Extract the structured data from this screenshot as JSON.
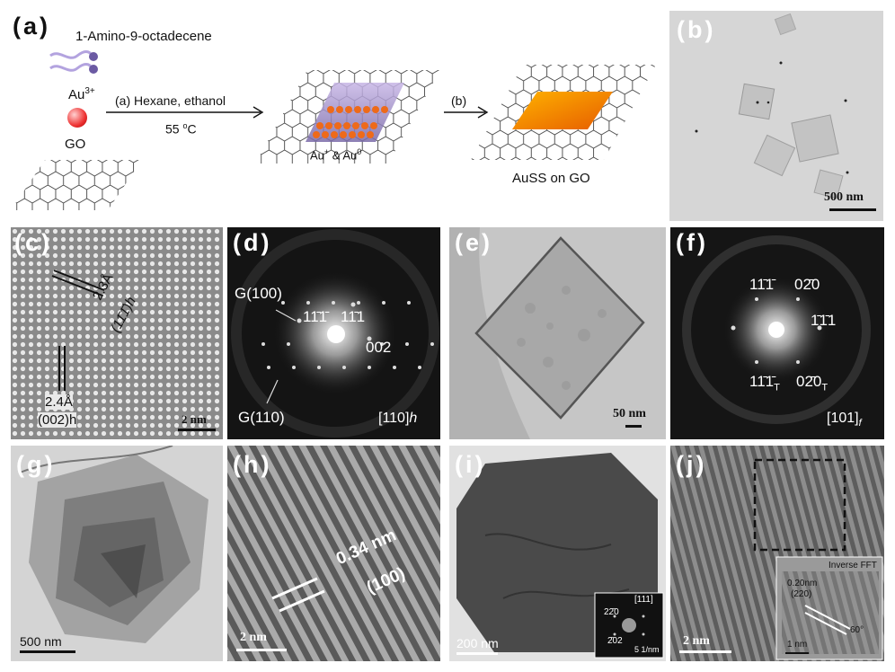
{
  "figure": {
    "panel_a": {
      "tag": "(a)",
      "molecule_label": "1-Amino-9-octadecene",
      "au_label": "Au",
      "au_sup": "3+",
      "go_label": "GO",
      "step1_label": "(a) Hexane, ethanol",
      "step1_temp": "55 ",
      "step1_temp_sup": "o",
      "step1_temp_unit": "C",
      "intermediate_label": "Au",
      "intermediate_sup1": "+",
      "intermediate_mid": " & Au",
      "intermediate_sup2": "0",
      "step2_label": "(b)",
      "product_label": "AuSS on GO"
    },
    "panel_b": {
      "tag": "(b)",
      "scale": "500 nm"
    },
    "panel_c": {
      "tag": "(c)",
      "d1": "2.3Å",
      "d1_plane": "(11̄1̄)h",
      "d2": "2.4Å",
      "d2_plane": "(002)h",
      "scale": "2 nm"
    },
    "panel_d": {
      "tag": "(d)",
      "g100": "G(100)",
      "g110": "G(110)",
      "spot1": "11̄1̄",
      "spot2": "11̄1",
      "spot3": "002",
      "zone": "[110]",
      "zone_sub": "h"
    },
    "panel_e": {
      "tag": "(e)",
      "scale": "50 nm"
    },
    "panel_f": {
      "tag": "(f)",
      "s1": "11̄1̄",
      "s2": "02̄0",
      "s3": "1̄1̄1",
      "s4": "11̄1̄",
      "s4_sub": "T",
      "s5": "02̄0",
      "s5_sub": "T",
      "zone": "[101]",
      "zone_sub": "f"
    },
    "panel_g": {
      "tag": "(g)",
      "scale": "500 nm"
    },
    "panel_h": {
      "tag": "(h)",
      "spacing": "0.34 nm",
      "plane": "(100)",
      "scale": "2 nm"
    },
    "panel_i": {
      "tag": "(i)",
      "scale": "200 nm",
      "inset_zone": "[111]",
      "inset_s1": "22̄0",
      "inset_s2": "2̄02",
      "inset_scale": "5 1/nm"
    },
    "panel_j": {
      "tag": "(j)",
      "scale": "2 nm",
      "inset_title": "Inverse FFT",
      "inset_d": "0.20nm",
      "inset_plane": "(220)",
      "inset_angle": "60°",
      "inset_scale": "1 nm"
    }
  }
}
